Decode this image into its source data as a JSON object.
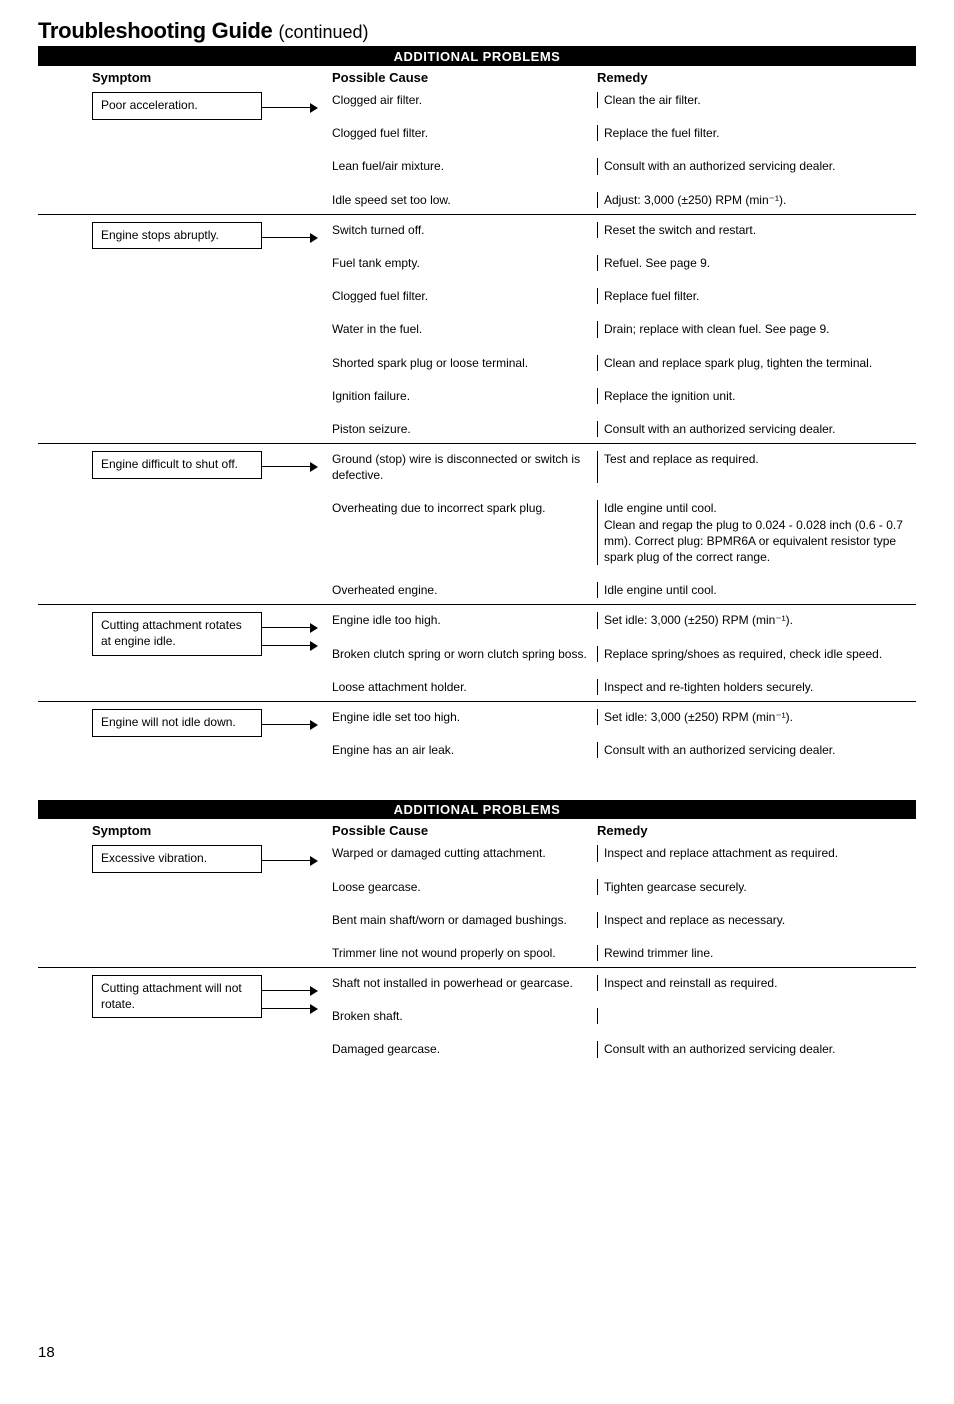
{
  "page": {
    "title_main": "Troubleshooting Guide",
    "title_cont": "(continued)",
    "page_number": "18"
  },
  "sections": [
    {
      "banner": "ADDITIONAL PROBLEMS",
      "col_symptom": "Symptom",
      "col_cause": "Possible Cause",
      "col_remedy": "Remedy",
      "groups": [
        {
          "symptom": "Poor acceleration.",
          "double_arrow": false,
          "rows": [
            {
              "cause": "Clogged air filter.",
              "remedy": "Clean the air filter."
            },
            {
              "cause": "Clogged fuel filter.",
              "remedy": "Replace the fuel filter."
            },
            {
              "cause": "Lean fuel/air mixture.",
              "remedy": "Consult with an authorized servicing dealer."
            },
            {
              "cause": "Idle speed set too low.",
              "remedy": "Adjust: 3,000 (±250) RPM (min⁻¹)."
            }
          ]
        },
        {
          "symptom": "Engine stops abruptly.",
          "double_arrow": false,
          "rows": [
            {
              "cause": "Switch turned off.",
              "remedy": "Reset the switch and restart."
            },
            {
              "cause": "Fuel tank empty.",
              "remedy": "Refuel. See page 9."
            },
            {
              "cause": "Clogged fuel filter.",
              "remedy": "Replace fuel filter."
            },
            {
              "cause": "Water in the fuel.",
              "remedy": "Drain; replace with clean fuel. See page 9."
            },
            {
              "cause": "Shorted spark plug or loose terminal.",
              "remedy": "Clean and replace spark plug, tighten the terminal."
            },
            {
              "cause": "Ignition failure.",
              "remedy": "Replace the ignition unit."
            },
            {
              "cause": "Piston seizure.",
              "remedy": "Consult with an authorized servicing dealer."
            }
          ]
        },
        {
          "symptom": "Engine difficult to shut off.",
          "double_arrow": false,
          "rows": [
            {
              "cause": "Ground (stop) wire is disconnected or switch is defective.",
              "remedy": "Test and replace as required."
            },
            {
              "cause": "Overheating due to incorrect spark plug.",
              "remedy": "Idle engine until cool.\nClean and regap the plug to 0.024 - 0.028 inch (0.6 - 0.7 mm). Correct plug: BPMR6A or equivalent resistor type spark plug of the correct range."
            },
            {
              "cause": "Overheated engine.",
              "remedy": "Idle engine until cool."
            }
          ]
        },
        {
          "symptom": "Cutting attachment rotates at engine idle.",
          "double_arrow": true,
          "rows": [
            {
              "cause": "Engine idle too high.",
              "remedy": "Set idle: 3,000 (±250) RPM (min⁻¹)."
            },
            {
              "cause": "Broken clutch spring or worn clutch spring boss.",
              "remedy": "Replace spring/shoes as required, check idle speed."
            },
            {
              "cause": "Loose attachment holder.",
              "remedy": "Inspect and re-tighten holders securely."
            }
          ]
        },
        {
          "symptom": "Engine will not idle down.",
          "double_arrow": false,
          "rows": [
            {
              "cause": "Engine idle set too high.",
              "remedy": "Set idle: 3,000 (±250) RPM (min⁻¹)."
            },
            {
              "cause": "Engine has an air leak.",
              "remedy": "Consult with an authorized servicing dealer."
            }
          ]
        }
      ]
    },
    {
      "banner": "ADDITIONAL PROBLEMS",
      "col_symptom": "Symptom",
      "col_cause": "Possible Cause",
      "col_remedy": "Remedy",
      "groups": [
        {
          "symptom": "Excessive vibration.",
          "double_arrow": false,
          "rows": [
            {
              "cause": "Warped or damaged cutting attachment.",
              "remedy": "Inspect and replace attachment as required."
            },
            {
              "cause": "Loose gearcase.",
              "remedy": "Tighten gearcase securely."
            },
            {
              "cause": "Bent main shaft/worn or damaged bushings.",
              "remedy": "Inspect and replace as necessary."
            },
            {
              "cause": "Trimmer line not wound properly on spool.",
              "remedy": "Rewind trimmer line."
            }
          ]
        },
        {
          "symptom": "Cutting attachment will not rotate.",
          "double_arrow": true,
          "rows": [
            {
              "cause": "Shaft not installed in powerhead or gearcase.",
              "remedy": "Inspect and reinstall as required."
            },
            {
              "cause": "Broken shaft.",
              "remedy": ""
            },
            {
              "cause": "Damaged gearcase.",
              "remedy": "Consult with an authorized servicing dealer."
            }
          ]
        }
      ]
    }
  ]
}
